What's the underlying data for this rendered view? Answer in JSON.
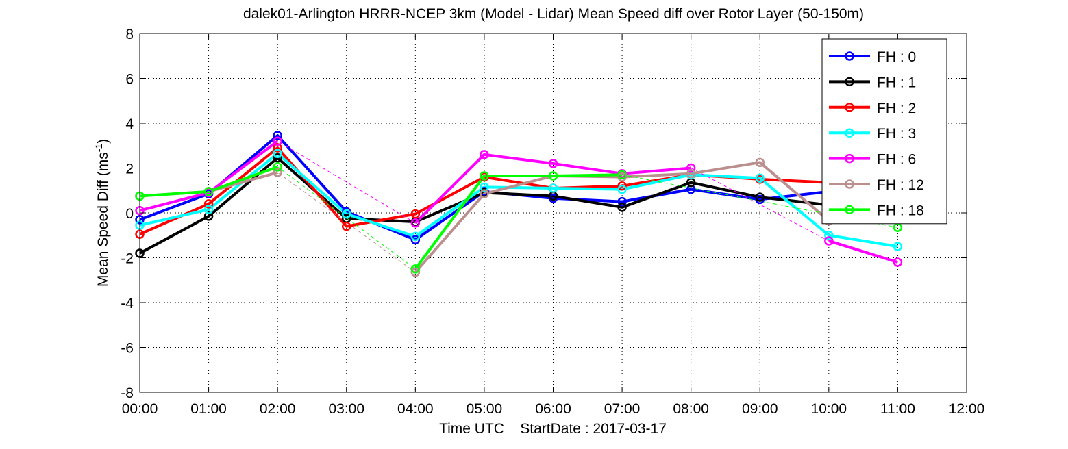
{
  "chart_data": {
    "type": "line",
    "title": "dalek01-Arlington HRRR-NCEP 3km (Model - Lidar) Mean Speed diff over Rotor Layer (50-150m)",
    "xlabel": "Time UTC    StartDate : 2017-03-17",
    "ylabel": "Mean Speed Diff (ms",
    "ylabel_sup": "-1",
    "ylabel_close": ")",
    "x_tick_labels": [
      "00:00",
      "01:00",
      "02:00",
      "03:00",
      "04:00",
      "05:00",
      "06:00",
      "07:00",
      "08:00",
      "09:00",
      "10:00",
      "11:00",
      "12:00"
    ],
    "y_ticks": [
      -8,
      -6,
      -4,
      -2,
      0,
      2,
      4,
      6,
      8
    ],
    "xlim": [
      0,
      12
    ],
    "ylim": [
      -8,
      8
    ],
    "grid": true,
    "legend_position": "top-right",
    "series": [
      {
        "name": "FH : 0",
        "color": "#0000ff",
        "x": [
          0,
          1,
          2,
          3,
          4,
          5,
          6,
          7,
          8,
          9,
          10,
          11
        ],
        "y": [
          -0.3,
          0.85,
          3.45,
          0.05,
          -1.2,
          0.95,
          0.65,
          0.5,
          1.05,
          0.6,
          0.95,
          null
        ]
      },
      {
        "name": "FH : 1",
        "color": "#000000",
        "x": [
          0,
          1,
          2,
          3,
          4,
          5,
          6,
          7,
          8,
          9,
          10,
          11
        ],
        "y": [
          -1.8,
          -0.15,
          2.45,
          -0.25,
          -0.4,
          0.9,
          0.75,
          0.25,
          1.35,
          0.7,
          0.35,
          null
        ]
      },
      {
        "name": "FH : 2",
        "color": "#ff0000",
        "x": [
          0,
          1,
          2,
          3,
          4,
          5,
          6,
          7,
          8,
          9,
          10,
          11
        ],
        "y": [
          -0.95,
          0.4,
          2.9,
          -0.6,
          -0.05,
          1.6,
          1.1,
          1.2,
          1.7,
          1.5,
          1.35,
          null
        ]
      },
      {
        "name": "FH : 3",
        "color": "#00ffff",
        "x": [
          0,
          1,
          2,
          3,
          4,
          5,
          6,
          7,
          8,
          9,
          10,
          11
        ],
        "y": [
          -0.55,
          0.15,
          2.65,
          -0.05,
          -1.05,
          1.15,
          1.1,
          1.05,
          1.7,
          1.55,
          -1.0,
          -1.5
        ]
      },
      {
        "name": "FH : 6",
        "color": "#ff00ff",
        "x": [
          0,
          1,
          2,
          3,
          4,
          5,
          6,
          7,
          8,
          9,
          10,
          11
        ],
        "y": [
          0.1,
          0.9,
          3.2,
          null,
          -0.45,
          2.6,
          2.2,
          1.75,
          2.0,
          null,
          -1.25,
          -2.2
        ]
      },
      {
        "name": "FH : 12",
        "color": "#bc8f8f",
        "x": [
          0,
          1,
          2,
          3,
          4,
          5,
          6,
          7,
          8,
          9,
          10,
          11
        ],
        "y": [
          0.75,
          0.95,
          1.8,
          null,
          -2.65,
          0.85,
          1.65,
          1.6,
          1.75,
          2.25,
          -0.35,
          null
        ]
      },
      {
        "name": "FH : 18",
        "color": "#00ff00",
        "x": [
          0,
          1,
          2,
          3,
          4,
          5,
          6,
          7,
          8,
          9,
          10,
          11
        ],
        "y": [
          0.75,
          0.95,
          2.05,
          null,
          -2.5,
          1.65,
          1.65,
          1.7,
          null,
          null,
          null,
          -0.65
        ]
      }
    ]
  }
}
